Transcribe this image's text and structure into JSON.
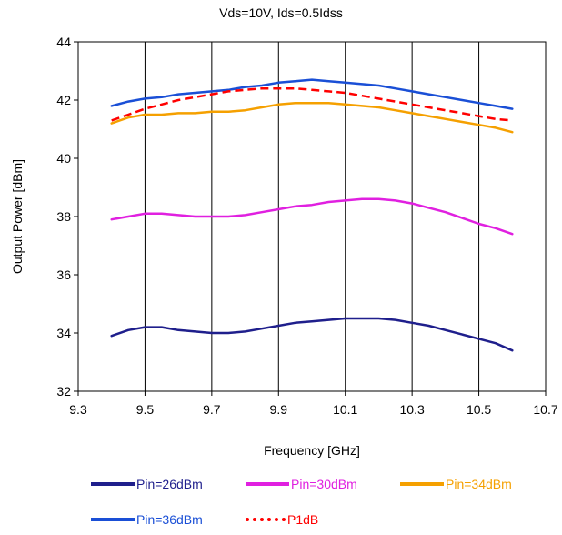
{
  "chart_data": {
    "type": "line",
    "title": "Vds=10V,  Ids=0.5Idss",
    "xlabel": "Frequency [GHz]",
    "ylabel": "Output Power [dBm]",
    "xlim": [
      9.3,
      10.7
    ],
    "ylim": [
      32,
      44
    ],
    "xticks": [
      9.3,
      9.5,
      9.7,
      9.9,
      10.1,
      10.3,
      10.5,
      10.7
    ],
    "xtick_labels": [
      "9.3",
      "9.5",
      "9.7",
      "9.9",
      "10.1",
      "10.3",
      "10.5",
      "10.7"
    ],
    "yticks": [
      32,
      34,
      36,
      38,
      40,
      42,
      44
    ],
    "ytick_labels": [
      "32",
      "34",
      "36",
      "38",
      "40",
      "42",
      "44"
    ],
    "grid": {
      "vertical": true,
      "horizontal": false
    },
    "legend_position": "bottom",
    "series": [
      {
        "name": "Pin=26dBm",
        "color": "#1f1f8c",
        "dash": "solid",
        "x": [
          9.4,
          9.45,
          9.5,
          9.55,
          9.6,
          9.65,
          9.7,
          9.75,
          9.8,
          9.85,
          9.9,
          9.95,
          10.0,
          10.05,
          10.1,
          10.15,
          10.2,
          10.25,
          10.3,
          10.35,
          10.4,
          10.45,
          10.5,
          10.55,
          10.6
        ],
        "y": [
          33.9,
          34.1,
          34.2,
          34.2,
          34.1,
          34.05,
          34.0,
          34.0,
          34.05,
          34.15,
          34.25,
          34.35,
          34.4,
          34.45,
          34.5,
          34.5,
          34.5,
          34.45,
          34.35,
          34.25,
          34.1,
          33.95,
          33.8,
          33.65,
          33.4
        ]
      },
      {
        "name": "Pin=30dBm",
        "color": "#e020e0",
        "dash": "solid",
        "x": [
          9.4,
          9.45,
          9.5,
          9.55,
          9.6,
          9.65,
          9.7,
          9.75,
          9.8,
          9.85,
          9.9,
          9.95,
          10.0,
          10.05,
          10.1,
          10.15,
          10.2,
          10.25,
          10.3,
          10.35,
          10.4,
          10.45,
          10.5,
          10.55,
          10.6
        ],
        "y": [
          37.9,
          38.0,
          38.1,
          38.1,
          38.05,
          38.0,
          38.0,
          38.0,
          38.05,
          38.15,
          38.25,
          38.35,
          38.4,
          38.5,
          38.55,
          38.6,
          38.6,
          38.55,
          38.45,
          38.3,
          38.15,
          37.95,
          37.75,
          37.6,
          37.4
        ]
      },
      {
        "name": "Pin=34dBm",
        "color": "#f5a000",
        "dash": "solid",
        "x": [
          9.4,
          9.45,
          9.5,
          9.55,
          9.6,
          9.65,
          9.7,
          9.75,
          9.8,
          9.85,
          9.9,
          9.95,
          10.0,
          10.05,
          10.1,
          10.15,
          10.2,
          10.25,
          10.3,
          10.35,
          10.4,
          10.45,
          10.5,
          10.55,
          10.6
        ],
        "y": [
          41.2,
          41.4,
          41.5,
          41.5,
          41.55,
          41.55,
          41.6,
          41.6,
          41.65,
          41.75,
          41.85,
          41.9,
          41.9,
          41.9,
          41.85,
          41.8,
          41.75,
          41.65,
          41.55,
          41.45,
          41.35,
          41.25,
          41.15,
          41.05,
          40.9
        ]
      },
      {
        "name": "Pin=36dBm",
        "color": "#1a4fd6",
        "dash": "solid",
        "x": [
          9.4,
          9.45,
          9.5,
          9.55,
          9.6,
          9.65,
          9.7,
          9.75,
          9.8,
          9.85,
          9.9,
          9.95,
          10.0,
          10.05,
          10.1,
          10.15,
          10.2,
          10.25,
          10.3,
          10.35,
          10.4,
          10.45,
          10.5,
          10.55,
          10.6
        ],
        "y": [
          41.8,
          41.95,
          42.05,
          42.1,
          42.2,
          42.25,
          42.3,
          42.35,
          42.45,
          42.5,
          42.6,
          42.65,
          42.7,
          42.65,
          42.6,
          42.55,
          42.5,
          42.4,
          42.3,
          42.2,
          42.1,
          42.0,
          41.9,
          41.8,
          41.7
        ]
      },
      {
        "name": "P1dB",
        "color": "#ff0000",
        "dash": "dashed",
        "x": [
          9.4,
          9.45,
          9.5,
          9.55,
          9.6,
          9.65,
          9.7,
          9.75,
          9.8,
          9.85,
          9.9,
          9.95,
          10.0,
          10.05,
          10.1,
          10.15,
          10.2,
          10.25,
          10.3,
          10.35,
          10.4,
          10.45,
          10.5,
          10.55,
          10.6
        ],
        "y": [
          41.3,
          41.5,
          41.7,
          41.85,
          42.0,
          42.1,
          42.2,
          42.3,
          42.35,
          42.4,
          42.4,
          42.4,
          42.35,
          42.3,
          42.25,
          42.15,
          42.05,
          41.95,
          41.85,
          41.75,
          41.65,
          41.55,
          41.45,
          41.35,
          41.3
        ]
      }
    ]
  }
}
